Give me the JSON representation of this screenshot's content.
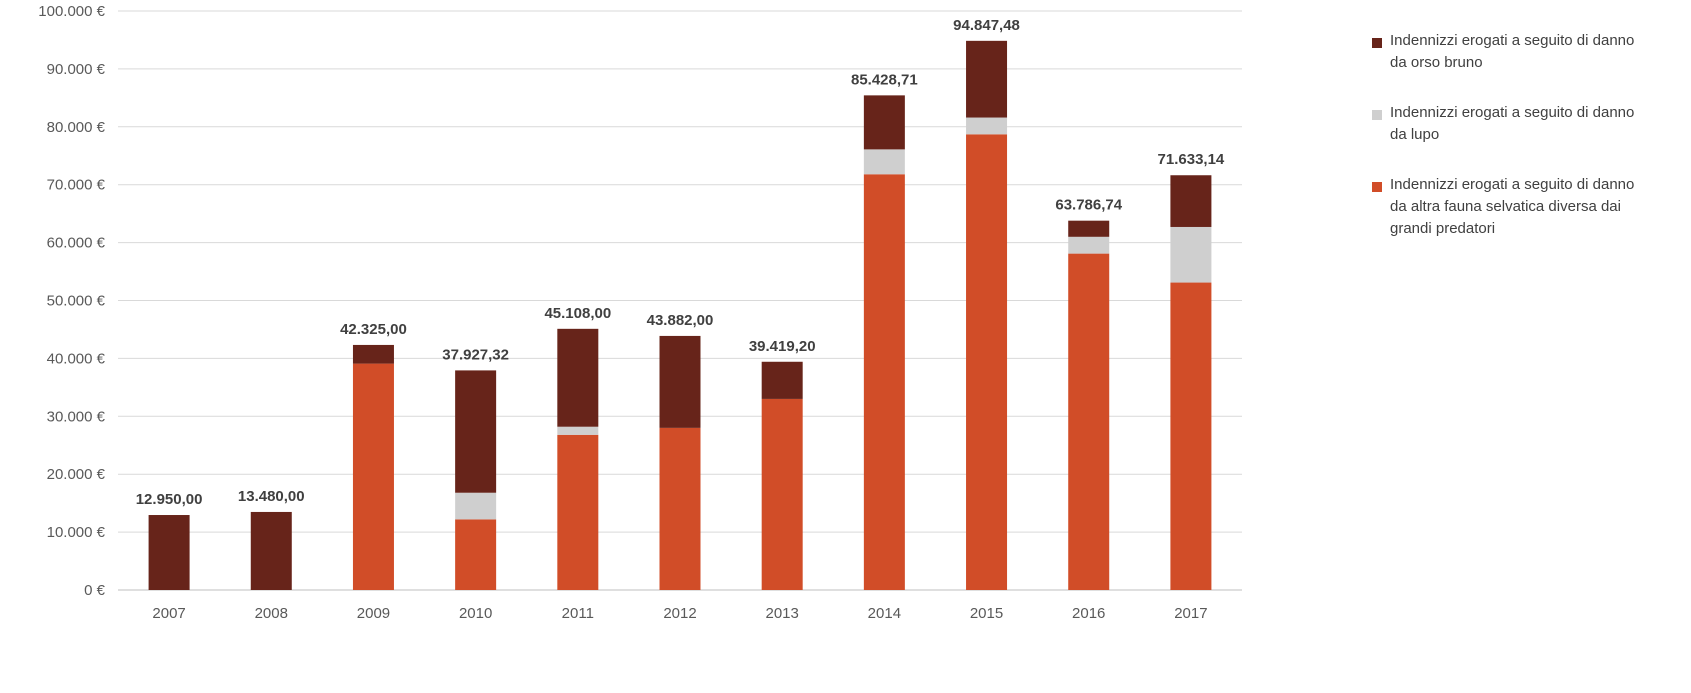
{
  "chart_data": {
    "type": "bar",
    "stacked": true,
    "categories": [
      "2007",
      "2008",
      "2009",
      "2010",
      "2011",
      "2012",
      "2013",
      "2014",
      "2015",
      "2016",
      "2017"
    ],
    "series": [
      {
        "name": "Indennizzi erogati a seguito di danno da altra fauna selvatica diversa dai grandi predatori",
        "color": "#D14D28",
        "values": [
          0,
          0,
          39100,
          12200,
          26800,
          28000,
          33000,
          71800,
          78700,
          58100,
          53100
        ]
      },
      {
        "name": "Indennizzi erogati a seguito di danno da lupo",
        "color": "#CFCFCF",
        "values": [
          0,
          0,
          0,
          4600,
          1400,
          0,
          0,
          4300,
          2900,
          2900,
          9600
        ]
      },
      {
        "name": "Indennizzi erogati a seguito di danno da orso bruno",
        "color": "#67241A",
        "values": [
          12950.0,
          13480.0,
          3225.0,
          21127.32,
          16908.0,
          15882.0,
          6419.2,
          9328.71,
          13247.48,
          2786.74,
          8933.14
        ]
      }
    ],
    "totals": [
      "12.950,00",
      "13.480,00",
      "42.325,00",
      "37.927,32",
      "45.108,00",
      "43.882,00",
      "39.419,20",
      "85.428,71",
      "94.847,48",
      "63.786,74",
      "71.633,14"
    ],
    "y_ticks": [
      "0 €",
      "10.000 €",
      "20.000 €",
      "30.000 €",
      "40.000 €",
      "50.000 €",
      "60.000 €",
      "70.000 €",
      "80.000 €",
      "90.000 €",
      "100.000 €"
    ],
    "ylim": [
      0,
      100000
    ],
    "grid": true,
    "legend_position": "right",
    "title": "",
    "xlabel": "",
    "ylabel": ""
  },
  "legend": [
    {
      "lines": [
        "Indennizzi erogati a seguito di danno",
        "da orso bruno"
      ],
      "color": "#67241A"
    },
    {
      "lines": [
        "Indennizzi erogati a seguito di danno",
        "da lupo"
      ],
      "color": "#CFCFCF"
    },
    {
      "lines": [
        "Indennizzi erogati a seguito di danno",
        "da altra fauna selvatica diversa dai",
        "grandi predatori"
      ],
      "color": "#D14D28"
    }
  ]
}
